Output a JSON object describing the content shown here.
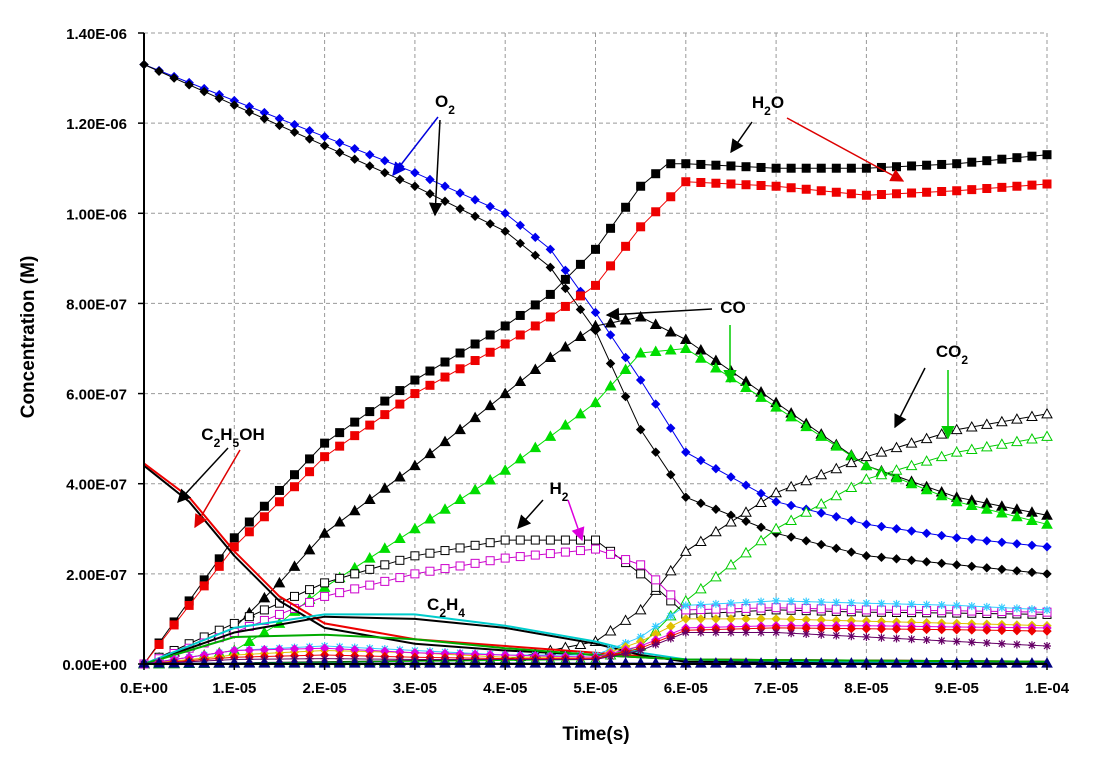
{
  "chart_data": {
    "type": "line",
    "title": "",
    "xlabel": "Time(s)",
    "ylabel": "Concentration (M)",
    "xlim": [
      0,
      0.0001
    ],
    "ylim": [
      0,
      1.4e-06
    ],
    "grid": true,
    "x_tick_labels": [
      "0.E+00",
      "1.E-05",
      "2.E-05",
      "3.E-05",
      "4.E-05",
      "5.E-05",
      "6.E-05",
      "7.E-05",
      "8.E-05",
      "9.E-05",
      "1.E-04"
    ],
    "y_tick_labels": [
      "0.00E+00",
      "2.00E-07",
      "4.00E-07",
      "6.00E-07",
      "8.00E-07",
      "1.00E-06",
      "1.20E-06",
      "1.40E-06"
    ],
    "annotations": [
      {
        "base": "O",
        "sub": "2",
        "tail": "",
        "species": "O2"
      },
      {
        "base": "H",
        "sub": "2",
        "tail": "O",
        "species": "H2O"
      },
      {
        "base": "CO",
        "sub": "",
        "tail": "",
        "species": "CO"
      },
      {
        "base": "CO",
        "sub": "2",
        "tail": "",
        "species": "CO2"
      },
      {
        "base": "C",
        "sub": "2",
        "tail": "H",
        "sub2": "5",
        "tail2": "OH",
        "species": "C2H5OH"
      },
      {
        "base": "H",
        "sub": "2",
        "tail": "",
        "species": "H2"
      },
      {
        "base": "C",
        "sub": "2",
        "tail": "H",
        "sub2": "4",
        "tail2": "",
        "species": "C2H4"
      }
    ],
    "series": [
      {
        "id": "o2_blue",
        "color": "#0000ee",
        "marker": "diamond",
        "fill": true,
        "points": [
          [
            0,
            1.33e-06
          ],
          [
            1e-05,
            1.25e-06
          ],
          [
            2e-05,
            1.17e-06
          ],
          [
            3e-05,
            1.09e-06
          ],
          [
            4e-05,
            1e-06
          ],
          [
            4.5e-05,
            9.2e-07
          ],
          [
            5e-05,
            7.8e-07
          ],
          [
            5.5e-05,
            6.3e-07
          ],
          [
            6e-05,
            4.7e-07
          ],
          [
            7e-05,
            3.6e-07
          ],
          [
            8e-05,
            3.1e-07
          ],
          [
            9e-05,
            2.8e-07
          ],
          [
            0.0001,
            2.6e-07
          ]
        ]
      },
      {
        "id": "o2_black",
        "color": "#000000",
        "marker": "diamond",
        "fill": true,
        "points": [
          [
            0,
            1.33e-06
          ],
          [
            1e-05,
            1.24e-06
          ],
          [
            2e-05,
            1.15e-06
          ],
          [
            3e-05,
            1.06e-06
          ],
          [
            4e-05,
            9.6e-07
          ],
          [
            4.5e-05,
            8.8e-07
          ],
          [
            5e-05,
            7.4e-07
          ],
          [
            5.5e-05,
            5.2e-07
          ],
          [
            6e-05,
            3.7e-07
          ],
          [
            7e-05,
            2.9e-07
          ],
          [
            8e-05,
            2.4e-07
          ],
          [
            9e-05,
            2.2e-07
          ],
          [
            0.0001,
            2e-07
          ]
        ]
      },
      {
        "id": "h2o_black",
        "color": "#000000",
        "marker": "square",
        "fill": true,
        "points": [
          [
            0,
            0
          ],
          [
            5e-06,
            1.4e-07
          ],
          [
            1e-05,
            2.8e-07
          ],
          [
            2e-05,
            4.9e-07
          ],
          [
            3e-05,
            6.3e-07
          ],
          [
            4e-05,
            7.5e-07
          ],
          [
            4.5e-05,
            8.2e-07
          ],
          [
            5e-05,
            9.2e-07
          ],
          [
            5.5e-05,
            1.06e-06
          ],
          [
            5.8e-05,
            1.11e-06
          ],
          [
            6e-05,
            1.11e-06
          ],
          [
            7e-05,
            1.1e-06
          ],
          [
            8e-05,
            1.1e-06
          ],
          [
            9e-05,
            1.11e-06
          ],
          [
            0.0001,
            1.13e-06
          ]
        ]
      },
      {
        "id": "h2o_red",
        "color": "#ee0000",
        "marker": "square",
        "fill": true,
        "points": [
          [
            0,
            0
          ],
          [
            5e-06,
            1.3e-07
          ],
          [
            1e-05,
            2.6e-07
          ],
          [
            2e-05,
            4.6e-07
          ],
          [
            3e-05,
            6e-07
          ],
          [
            4e-05,
            7.1e-07
          ],
          [
            4.5e-05,
            7.7e-07
          ],
          [
            5e-05,
            8.4e-07
          ],
          [
            5.5e-05,
            9.7e-07
          ],
          [
            6e-05,
            1.07e-06
          ],
          [
            7e-05,
            1.06e-06
          ],
          [
            8e-05,
            1.04e-06
          ],
          [
            9e-05,
            1.05e-06
          ],
          [
            0.0001,
            1.065e-06
          ]
        ]
      },
      {
        "id": "co_black",
        "color": "#000000",
        "marker": "triangle",
        "fill": true,
        "points": [
          [
            0,
            0
          ],
          [
            1e-05,
            8e-08
          ],
          [
            1.5e-05,
            1.8e-07
          ],
          [
            2e-05,
            2.9e-07
          ],
          [
            3e-05,
            4.4e-07
          ],
          [
            4e-05,
            6e-07
          ],
          [
            4.5e-05,
            6.8e-07
          ],
          [
            5e-05,
            7.5e-07
          ],
          [
            5.5e-05,
            7.7e-07
          ],
          [
            6e-05,
            7.2e-07
          ],
          [
            7e-05,
            5.8e-07
          ],
          [
            8e-05,
            4.4e-07
          ],
          [
            9e-05,
            3.7e-07
          ],
          [
            0.0001,
            3.3e-07
          ]
        ]
      },
      {
        "id": "co_green",
        "color": "#00dd00",
        "marker": "triangle",
        "fill": true,
        "points": [
          [
            0,
            0
          ],
          [
            1e-05,
            3e-08
          ],
          [
            1.5e-05,
            9e-08
          ],
          [
            2e-05,
            1.7e-07
          ],
          [
            3e-05,
            3e-07
          ],
          [
            4e-05,
            4.3e-07
          ],
          [
            5e-05,
            5.8e-07
          ],
          [
            5.5e-05,
            6.9e-07
          ],
          [
            6e-05,
            7e-07
          ],
          [
            7e-05,
            5.7e-07
          ],
          [
            8e-05,
            4.4e-07
          ],
          [
            9e-05,
            3.6e-07
          ],
          [
            0.0001,
            3.1e-07
          ]
        ]
      },
      {
        "id": "co2_black",
        "color": "#000000",
        "marker": "triangle",
        "fill": false,
        "points": [
          [
            0,
            0
          ],
          [
            4e-05,
            1e-08
          ],
          [
            5e-05,
            5e-08
          ],
          [
            5.5e-05,
            1.2e-07
          ],
          [
            6e-05,
            2.5e-07
          ],
          [
            7e-05,
            3.8e-07
          ],
          [
            8e-05,
            4.6e-07
          ],
          [
            9e-05,
            5.2e-07
          ],
          [
            0.0001,
            5.55e-07
          ]
        ]
      },
      {
        "id": "co2_green",
        "color": "#00cc00",
        "marker": "triangle",
        "fill": false,
        "points": [
          [
            0,
            0
          ],
          [
            5e-05,
            1e-08
          ],
          [
            5.5e-05,
            4e-08
          ],
          [
            6e-05,
            1.4e-07
          ],
          [
            7e-05,
            3e-07
          ],
          [
            8e-05,
            4.1e-07
          ],
          [
            9e-05,
            4.7e-07
          ],
          [
            0.0001,
            5.05e-07
          ]
        ]
      },
      {
        "id": "h2_black",
        "color": "#000000",
        "marker": "square",
        "fill": false,
        "points": [
          [
            0,
            0
          ],
          [
            1e-05,
            9e-08
          ],
          [
            2e-05,
            1.8e-07
          ],
          [
            3e-05,
            2.4e-07
          ],
          [
            4e-05,
            2.75e-07
          ],
          [
            5e-05,
            2.75e-07
          ],
          [
            5.5e-05,
            2e-07
          ],
          [
            6e-05,
            1.1e-07
          ],
          [
            7e-05,
            1.2e-07
          ],
          [
            8e-05,
            1.15e-07
          ],
          [
            9e-05,
            1.13e-07
          ],
          [
            0.0001,
            1.1e-07
          ]
        ]
      },
      {
        "id": "h2_magenta",
        "color": "#cc00cc",
        "marker": "square",
        "fill": false,
        "points": [
          [
            0,
            0
          ],
          [
            1e-05,
            7e-08
          ],
          [
            2e-05,
            1.5e-07
          ],
          [
            3e-05,
            2e-07
          ],
          [
            4e-05,
            2.35e-07
          ],
          [
            5e-05,
            2.55e-07
          ],
          [
            5.5e-05,
            2.2e-07
          ],
          [
            6e-05,
            1.2e-07
          ],
          [
            7e-05,
            1.25e-07
          ],
          [
            8e-05,
            1.2e-07
          ],
          [
            9e-05,
            1.18e-07
          ],
          [
            0.0001,
            1.15e-07
          ]
        ]
      },
      {
        "id": "c2h5oh_black",
        "color": "#000000",
        "marker": "none",
        "fill": false,
        "points": [
          [
            0,
            4.4e-07
          ],
          [
            5e-06,
            3.6e-07
          ],
          [
            1e-05,
            2.4e-07
          ],
          [
            1.5e-05,
            1.4e-07
          ],
          [
            2e-05,
            8e-08
          ],
          [
            3e-05,
            4.5e-08
          ],
          [
            4e-05,
            3e-08
          ],
          [
            5e-05,
            2e-08
          ],
          [
            6e-05,
            1e-08
          ],
          [
            0.0001,
            5e-09
          ]
        ]
      },
      {
        "id": "c2h5oh_red",
        "color": "#ee0000",
        "marker": "none",
        "fill": false,
        "points": [
          [
            0,
            4.45e-07
          ],
          [
            5e-06,
            3.7e-07
          ],
          [
            1e-05,
            2.5e-07
          ],
          [
            1.5e-05,
            1.5e-07
          ],
          [
            2e-05,
            9e-08
          ],
          [
            3e-05,
            5.5e-08
          ],
          [
            4e-05,
            4e-08
          ],
          [
            5e-05,
            2.5e-08
          ],
          [
            6e-05,
            1e-08
          ],
          [
            0.0001,
            5e-09
          ]
        ]
      },
      {
        "id": "c2h4_black",
        "color": "#000000",
        "marker": "none",
        "fill": false,
        "points": [
          [
            0,
            0
          ],
          [
            1e-05,
            7e-08
          ],
          [
            2e-05,
            1.05e-07
          ],
          [
            3e-05,
            1e-07
          ],
          [
            4e-05,
            8e-08
          ],
          [
            5e-05,
            4.5e-08
          ],
          [
            5.5e-05,
            2e-08
          ],
          [
            6e-05,
            5e-09
          ],
          [
            0.0001,
            0
          ]
        ]
      },
      {
        "id": "c2h4_cyan",
        "color": "#00cccc",
        "marker": "none",
        "fill": false,
        "points": [
          [
            0,
            0
          ],
          [
            1e-05,
            8e-08
          ],
          [
            2e-05,
            1.1e-07
          ],
          [
            3e-05,
            1.1e-07
          ],
          [
            4e-05,
            8.5e-08
          ],
          [
            5e-05,
            5e-08
          ],
          [
            5.5e-05,
            2.5e-08
          ],
          [
            6e-05,
            1e-08
          ],
          [
            0.0001,
            0
          ]
        ]
      },
      {
        "id": "minor_cyan_star",
        "color": "#33ccff",
        "marker": "star",
        "fill": false,
        "points": [
          [
            0,
            0
          ],
          [
            1e-05,
            3e-08
          ],
          [
            2e-05,
            4e-08
          ],
          [
            3e-05,
            3e-08
          ],
          [
            4e-05,
            2e-08
          ],
          [
            5e-05,
            2e-08
          ],
          [
            5.5e-05,
            6e-08
          ],
          [
            6e-05,
            1.3e-07
          ],
          [
            7e-05,
            1.4e-07
          ],
          [
            8e-05,
            1.35e-07
          ],
          [
            9e-05,
            1.3e-07
          ],
          [
            0.0001,
            1.2e-07
          ]
        ]
      },
      {
        "id": "minor_yellow",
        "color": "#e0c000",
        "marker": "diamond",
        "fill": true,
        "points": [
          [
            0,
            0
          ],
          [
            1e-05,
            2e-08
          ],
          [
            2e-05,
            3e-08
          ],
          [
            3e-05,
            2.5e-08
          ],
          [
            4e-05,
            1.5e-08
          ],
          [
            5e-05,
            1.5e-08
          ],
          [
            5.5e-05,
            5e-08
          ],
          [
            6e-05,
            1e-07
          ],
          [
            7e-05,
            1e-07
          ],
          [
            8e-05,
            9.5e-08
          ],
          [
            9e-05,
            9e-08
          ],
          [
            0.0001,
            8.5e-08
          ]
        ]
      },
      {
        "id": "minor_green_line",
        "color": "#00aa00",
        "marker": "none",
        "fill": false,
        "points": [
          [
            0,
            0
          ],
          [
            1e-05,
            6e-08
          ],
          [
            2e-05,
            6.5e-08
          ],
          [
            3e-05,
            5.5e-08
          ],
          [
            4e-05,
            3.5e-08
          ],
          [
            5e-05,
            2e-08
          ],
          [
            6e-05,
            1e-08
          ],
          [
            0.0001,
            5e-09
          ]
        ]
      },
      {
        "id": "minor_magenta",
        "color": "#dd00dd",
        "marker": "diamond",
        "fill": true,
        "points": [
          [
            0,
            0
          ],
          [
            1e-05,
            3e-08
          ],
          [
            2e-05,
            3.5e-08
          ],
          [
            3e-05,
            2.5e-08
          ],
          [
            4e-05,
            2e-08
          ],
          [
            5e-05,
            1.5e-08
          ],
          [
            5.5e-05,
            4e-08
          ],
          [
            6e-05,
            8e-08
          ],
          [
            7e-05,
            8.5e-08
          ],
          [
            8e-05,
            8.5e-08
          ],
          [
            9e-05,
            8.2e-08
          ],
          [
            0.0001,
            8e-08
          ]
        ]
      },
      {
        "id": "minor_red",
        "color": "#ee0000",
        "marker": "diamond",
        "fill": true,
        "points": [
          [
            0,
            0
          ],
          [
            1e-05,
            1.5e-08
          ],
          [
            2e-05,
            2e-08
          ],
          [
            3e-05,
            1.5e-08
          ],
          [
            4e-05,
            1.2e-08
          ],
          [
            5e-05,
            1.2e-08
          ],
          [
            5.5e-05,
            3.5e-08
          ],
          [
            6e-05,
            7.5e-08
          ],
          [
            7e-05,
            8e-08
          ],
          [
            8e-05,
            7.8e-08
          ],
          [
            9e-05,
            7.6e-08
          ],
          [
            0.0001,
            7.3e-08
          ]
        ]
      },
      {
        "id": "minor_purple_star",
        "color": "#660066",
        "marker": "star",
        "fill": false,
        "points": [
          [
            0,
            0
          ],
          [
            1e-05,
            1e-08
          ],
          [
            2e-05,
            1.2e-08
          ],
          [
            3e-05,
            1e-08
          ],
          [
            4e-05,
            1e-08
          ],
          [
            5e-05,
            1e-08
          ],
          [
            5.5e-05,
            3e-08
          ],
          [
            6e-05,
            7e-08
          ],
          [
            7e-05,
            7e-08
          ],
          [
            8e-05,
            6e-08
          ],
          [
            9e-05,
            5e-08
          ],
          [
            0.0001,
            4e-08
          ]
        ]
      },
      {
        "id": "minor_navy",
        "color": "#000080",
        "marker": "triangle",
        "fill": true,
        "points": [
          [
            0,
            2e-09
          ],
          [
            5e-05,
            2e-09
          ],
          [
            0.0001,
            2e-09
          ]
        ]
      }
    ]
  }
}
